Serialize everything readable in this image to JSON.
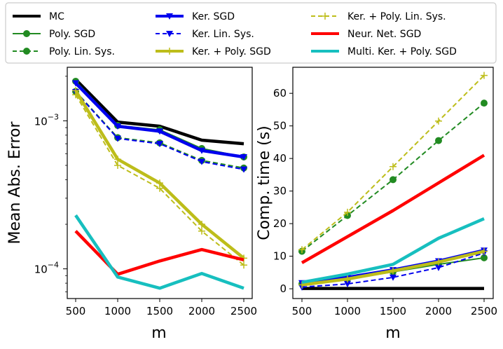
{
  "legend": {
    "entries": [
      {
        "label": "MC",
        "color": "#000000",
        "dash": "solid",
        "width": 4,
        "marker": "none"
      },
      {
        "label": "Poly. SGD",
        "color": "#228B22",
        "dash": "solid",
        "width": 2,
        "marker": "circle"
      },
      {
        "label": "Poly. Lin. Sys.",
        "color": "#228B22",
        "dash": "dashed",
        "width": 2,
        "marker": "circle"
      },
      {
        "label": "Ker. SGD",
        "color": "#0000EE",
        "dash": "solid",
        "width": 4,
        "marker": "triangle-down"
      },
      {
        "label": "Ker. Lin. Sys.",
        "color": "#0000EE",
        "dash": "dashed",
        "width": 2,
        "marker": "triangle-down"
      },
      {
        "label": "Ker. + Poly. SGD",
        "color": "#BDBD1A",
        "dash": "solid",
        "width": 4,
        "marker": "plus"
      },
      {
        "label": "Ker. + Poly. Lin. Sys.",
        "color": "#BDBD1A",
        "dash": "dashed",
        "width": 2,
        "marker": "plus"
      },
      {
        "label": "Neur. Net. SGD",
        "color": "#FF0000",
        "dash": "solid",
        "width": 4,
        "marker": "none"
      },
      {
        "label": "Multi. Ker. + Poly. SGD",
        "color": "#17BFBF",
        "dash": "solid",
        "width": 4,
        "marker": "none"
      }
    ]
  },
  "chart_data": [
    {
      "type": "line",
      "yscale": "log",
      "title": "",
      "xlabel": "m",
      "ylabel": "Mean Abs. Error",
      "x": [
        500,
        1000,
        1500,
        2000,
        2500
      ],
      "xlim": [
        400,
        2600
      ],
      "ylim": [
        6.3e-05,
        0.0023
      ],
      "xticks": [
        500,
        1000,
        1500,
        2000,
        2500
      ],
      "yticks": [
        {
          "value": 0.001,
          "base": "10",
          "exp": "−3"
        },
        {
          "value": 0.0001,
          "base": "10",
          "exp": "−4"
        }
      ],
      "series": [
        {
          "name": "MC",
          "values": [
            0.0019,
            0.00098,
            0.00092,
            0.00074,
            0.0007
          ]
        },
        {
          "name": "Poly. SGD",
          "values": [
            0.00185,
            0.00093,
            0.00087,
            0.00065,
            0.00057
          ]
        },
        {
          "name": "Poly. Lin. Sys.",
          "values": [
            0.00158,
            0.00077,
            0.00071,
            0.00054,
            0.00048
          ]
        },
        {
          "name": "Ker. SGD",
          "values": [
            0.0018,
            0.00092,
            0.00085,
            0.00063,
            0.00057
          ]
        },
        {
          "name": "Ker. Lin. Sys.",
          "values": [
            0.00157,
            0.00076,
            0.0007,
            0.00053,
            0.00047
          ]
        },
        {
          "name": "Ker. + Poly. SGD",
          "values": [
            0.0016,
            0.00055,
            0.00038,
            0.0002,
            0.000118
          ]
        },
        {
          "name": "Ker. + Poly. Lin. Sys.",
          "values": [
            0.0015,
            0.0005,
            0.00035,
            0.00018,
            0.000106
          ]
        },
        {
          "name": "Neur. Net. SGD",
          "values": [
            0.00018,
            9.2e-05,
            0.000113,
            0.000135,
            0.000115
          ]
        },
        {
          "name": "Multi. Ker. + Poly. SGD",
          "values": [
            0.00023,
            8.8e-05,
            7.4e-05,
            9.3e-05,
            7.4e-05
          ]
        }
      ]
    },
    {
      "type": "line",
      "yscale": "linear",
      "title": "",
      "xlabel": "m",
      "ylabel": "Comp. time (s)",
      "x": [
        500,
        1000,
        1500,
        2000,
        2500
      ],
      "xlim": [
        400,
        2600
      ],
      "ylim": [
        -3,
        68
      ],
      "xticks": [
        500,
        1000,
        1500,
        2000,
        2500
      ],
      "yticks": [
        0,
        10,
        20,
        30,
        40,
        50,
        60
      ],
      "series": [
        {
          "name": "MC",
          "values": [
            0.1,
            0.1,
            0.1,
            0.1,
            0.1
          ]
        },
        {
          "name": "Poly. SGD",
          "values": [
            1.5,
            3.0,
            5.2,
            7.5,
            9.5
          ]
        },
        {
          "name": "Poly. Lin. Sys.",
          "values": [
            11.5,
            22.5,
            33.5,
            45.5,
            57.0
          ]
        },
        {
          "name": "Ker. SGD",
          "values": [
            1.8,
            3.5,
            5.8,
            8.5,
            11.8
          ]
        },
        {
          "name": "Ker. Lin. Sys.",
          "values": [
            0.5,
            1.5,
            3.5,
            6.5,
            11.0
          ]
        },
        {
          "name": "Ker. + Poly. SGD",
          "values": [
            1.2,
            3.0,
            5.5,
            8.2,
            11.5
          ]
        },
        {
          "name": "Ker. + Poly. Lin. Sys.",
          "values": [
            12.0,
            23.5,
            37.5,
            51.5,
            65.5
          ]
        },
        {
          "name": "Neur. Net. SGD",
          "values": [
            8.0,
            16.0,
            24.0,
            32.5,
            41.0
          ]
        },
        {
          "name": "Multi. Ker. + Poly. SGD",
          "values": [
            2.0,
            4.5,
            7.5,
            15.5,
            21.5
          ]
        }
      ]
    }
  ]
}
